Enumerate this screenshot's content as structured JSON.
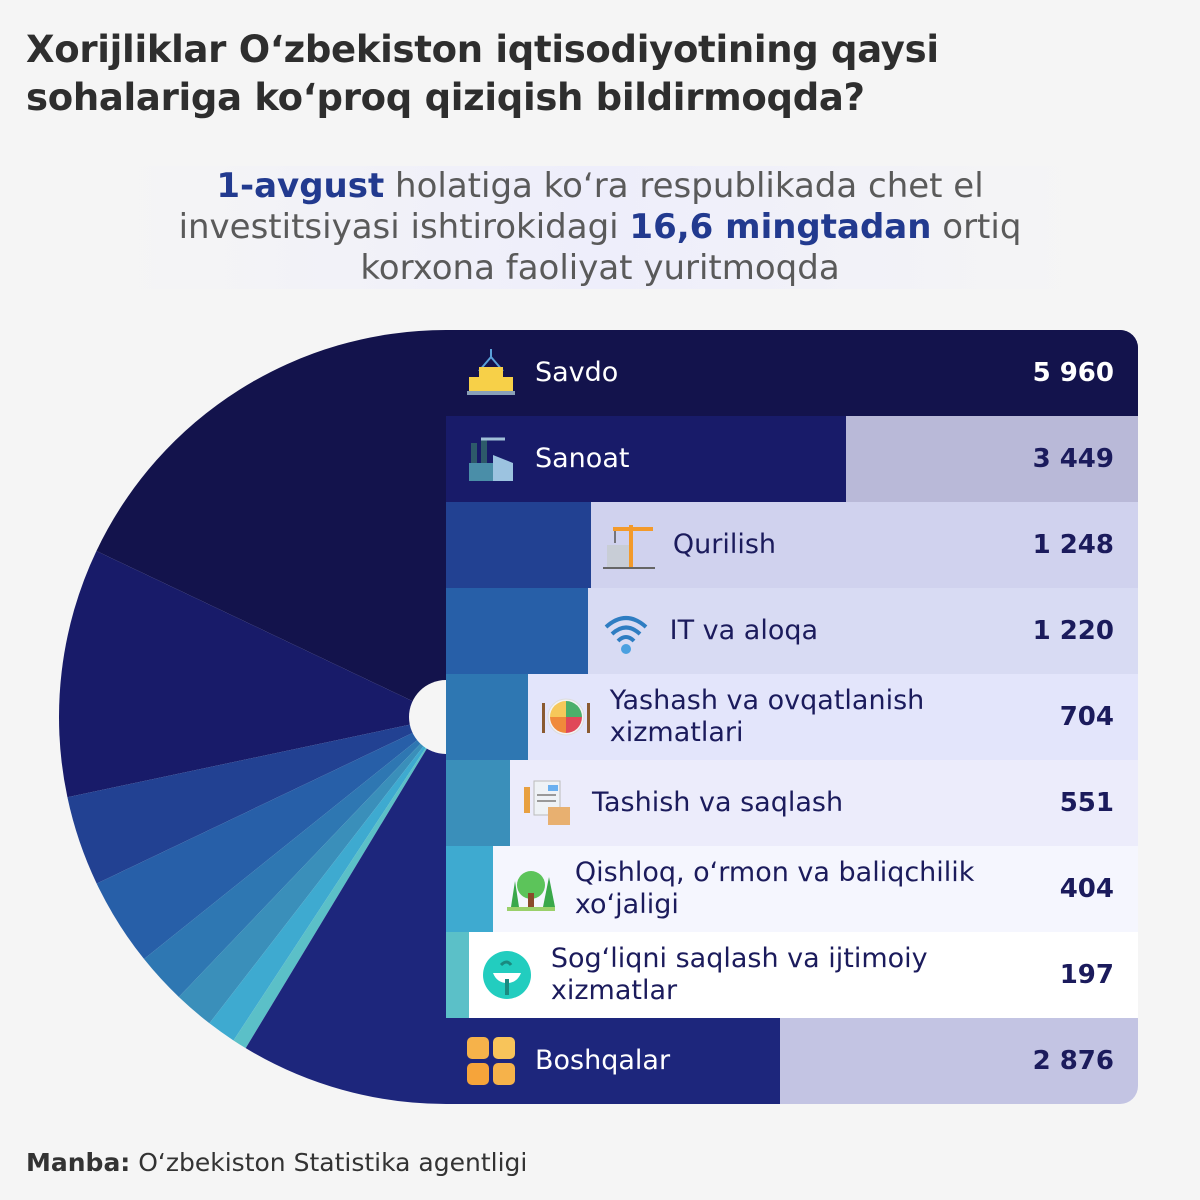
{
  "title": "Xorijliklar O‘zbekiston iqtisodiyotining qaysi sohalariga ko‘proq qiziqish bildirmoqda?",
  "subtitle": {
    "part1_bold": "1-avgust",
    "part2": " holatiga ko‘ra respublikada chet el investitsiyasi ishtirokidagi ",
    "part3_bold": "16,6 mingtadan",
    "part4": " ortiq korxona faoliyat yuritmoqda"
  },
  "source": {
    "label": "Manba:",
    "text": " O‘zbekiston Statistika agentligi"
  },
  "chart_data": {
    "type": "bar",
    "secondary_type": "half-pie",
    "categories": [
      "Savdo",
      "Sanoat",
      "Qurilish",
      "IT va aloqa",
      "Yashash va ovqatlanish xizmatlari",
      "Tashish va saqlash",
      "Qishloq, o‘rmon va baliqchilik xo‘jaligi",
      "Sog‘liqni saqlash va ijtimoiy xizmatlar",
      "Boshqalar"
    ],
    "values": [
      5960,
      3449,
      1248,
      1220,
      704,
      551,
      404,
      197,
      2876
    ],
    "value_labels": [
      "5 960",
      "3 449",
      "1 248",
      "1 220",
      "704",
      "551",
      "404",
      "197",
      "2 876"
    ],
    "icons": [
      "boxes-icon",
      "factory-icon",
      "crane-icon",
      "wifi-icon",
      "food-plate-icon",
      "document-box-icon",
      "trees-icon",
      "medical-icon",
      "grid-icon"
    ],
    "colors": [
      "#13134c",
      "#181b69",
      "#224192",
      "#275fa8",
      "#2e77b2",
      "#3a8fba",
      "#3eaad0",
      "#5bc0c8",
      "#1d267c"
    ],
    "row_backgrounds": [
      "#13134c",
      "#b9b9d8",
      "#d0d2ee",
      "#d8dbf3",
      "#e3e5fb",
      "#ececfb",
      "#f5f6fe",
      "#ffffff",
      "#c3c4e3"
    ]
  }
}
